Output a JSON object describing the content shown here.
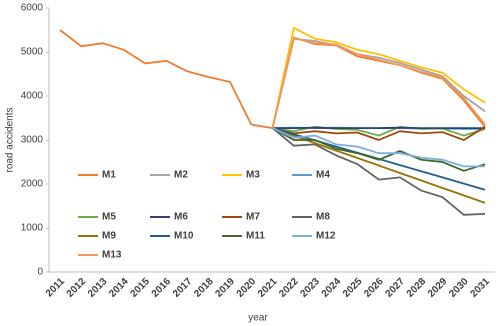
{
  "chart_data": {
    "type": "line",
    "x_label": "year",
    "y_label": "road accidents",
    "categories": [
      "2011",
      "2012",
      "2013",
      "2014",
      "2015",
      "2016",
      "2017",
      "2018",
      "2019",
      "2020",
      "2021",
      "2022",
      "2023",
      "2024",
      "2025",
      "2026",
      "2027",
      "2028",
      "2029",
      "2030",
      "2031"
    ],
    "ylim": [
      0,
      6000
    ],
    "yticks": [
      0,
      1000,
      2000,
      3000,
      4000,
      5000,
      6000
    ],
    "grid": false,
    "legend": "lower-left-inside",
    "series": [
      {
        "name": "M1",
        "color": "#ED7D31",
        "values": [
          5500,
          5130,
          5200,
          5050,
          4740,
          4800,
          4560,
          4430,
          4320,
          3350,
          3270,
          5330,
          5180,
          5150,
          4900,
          4800,
          4700,
          4530,
          4390,
          3900,
          3300
        ]
      },
      {
        "name": "M2",
        "color": "#A5A5A5",
        "values": [
          null,
          null,
          null,
          null,
          null,
          null,
          null,
          null,
          null,
          null,
          3270,
          5300,
          5250,
          5150,
          4950,
          4870,
          4750,
          4600,
          4450,
          4000,
          3650
        ]
      },
      {
        "name": "M3",
        "color": "#FFC000",
        "values": [
          null,
          null,
          null,
          null,
          null,
          null,
          null,
          null,
          null,
          null,
          3270,
          5550,
          5300,
          5220,
          5050,
          4950,
          4800,
          4650,
          4530,
          4150,
          3850
        ]
      },
      {
        "name": "M4",
        "color": "#5B9BD5",
        "values": [
          null,
          null,
          null,
          null,
          null,
          null,
          null,
          null,
          null,
          null,
          3270,
          3280,
          3270,
          3280,
          3270,
          3270,
          3270,
          3260,
          3260,
          3250,
          3250
        ]
      },
      {
        "name": "M5",
        "color": "#70AD47",
        "values": [
          null,
          null,
          null,
          null,
          null,
          null,
          null,
          null,
          null,
          null,
          3270,
          3200,
          3300,
          3250,
          3230,
          3100,
          3300,
          3250,
          3260,
          3100,
          3250
        ]
      },
      {
        "name": "M6",
        "color": "#264478",
        "values": [
          null,
          null,
          null,
          null,
          null,
          null,
          null,
          null,
          null,
          null,
          3270,
          3270,
          3280,
          3270,
          3270,
          3270,
          3280,
          3270,
          3270,
          3270,
          3270
        ]
      },
      {
        "name": "M7",
        "color": "#9E480E",
        "values": [
          null,
          null,
          null,
          null,
          null,
          null,
          null,
          null,
          null,
          null,
          3270,
          3150,
          3200,
          3150,
          3170,
          3000,
          3200,
          3150,
          3180,
          3000,
          3300
        ]
      },
      {
        "name": "M8",
        "color": "#636363",
        "values": [
          null,
          null,
          null,
          null,
          null,
          null,
          null,
          null,
          null,
          null,
          3270,
          2870,
          2900,
          2650,
          2450,
          2100,
          2150,
          1850,
          1700,
          1300,
          1320
        ]
      },
      {
        "name": "M9",
        "color": "#997300",
        "values": [
          null,
          null,
          null,
          null,
          null,
          null,
          null,
          null,
          null,
          null,
          3270,
          3100,
          2930,
          2760,
          2590,
          2420,
          2250,
          2080,
          1910,
          1740,
          1570
        ]
      },
      {
        "name": "M10",
        "color": "#255E91",
        "values": [
          null,
          null,
          null,
          null,
          null,
          null,
          null,
          null,
          null,
          null,
          3270,
          3130,
          2990,
          2850,
          2710,
          2570,
          2430,
          2290,
          2150,
          2010,
          1870
        ]
      },
      {
        "name": "M11",
        "color": "#43682B",
        "values": [
          null,
          null,
          null,
          null,
          null,
          null,
          null,
          null,
          null,
          null,
          3270,
          3000,
          3000,
          2800,
          2700,
          2550,
          2750,
          2550,
          2500,
          2300,
          2450
        ]
      },
      {
        "name": "M12",
        "color": "#7CAFDD",
        "values": [
          null,
          null,
          null,
          null,
          null,
          null,
          null,
          null,
          null,
          null,
          3270,
          3050,
          3100,
          2900,
          2850,
          2700,
          2700,
          2600,
          2550,
          2400,
          2400
        ]
      },
      {
        "name": "M13",
        "color": "#F1975A",
        "values": [
          null,
          null,
          null,
          null,
          null,
          null,
          null,
          null,
          null,
          null,
          3270,
          5320,
          5200,
          5170,
          4950,
          4820,
          4700,
          4550,
          4420,
          3950,
          3350
        ]
      }
    ]
  }
}
